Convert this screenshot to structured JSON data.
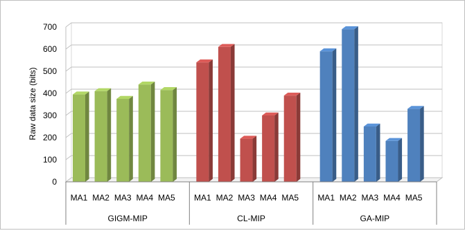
{
  "chart_data": {
    "type": "bar",
    "ylabel": "Raw data size (bits)",
    "yticks": [
      0,
      100,
      200,
      300,
      400,
      500,
      600,
      700
    ],
    "ylim": [
      0,
      700
    ],
    "groups": [
      {
        "name": "GIGM-MIP",
        "color": "#9BBB59",
        "categories": [
          "MA1",
          "MA2",
          "MA3",
          "MA4",
          "MA5"
        ],
        "values": [
          395,
          410,
          375,
          440,
          415
        ]
      },
      {
        "name": "CL-MIP",
        "color": "#C0504D",
        "categories": [
          "MA1",
          "MA2",
          "MA3",
          "MA4",
          "MA5"
        ],
        "values": [
          540,
          610,
          195,
          300,
          390
        ]
      },
      {
        "name": "GA-MIP",
        "color": "#4F81BD",
        "categories": [
          "MA1",
          "MA2",
          "MA3",
          "MA4",
          "MA5"
        ],
        "values": [
          590,
          690,
          250,
          185,
          330
        ]
      }
    ],
    "grid": true,
    "style": "3d-column"
  }
}
